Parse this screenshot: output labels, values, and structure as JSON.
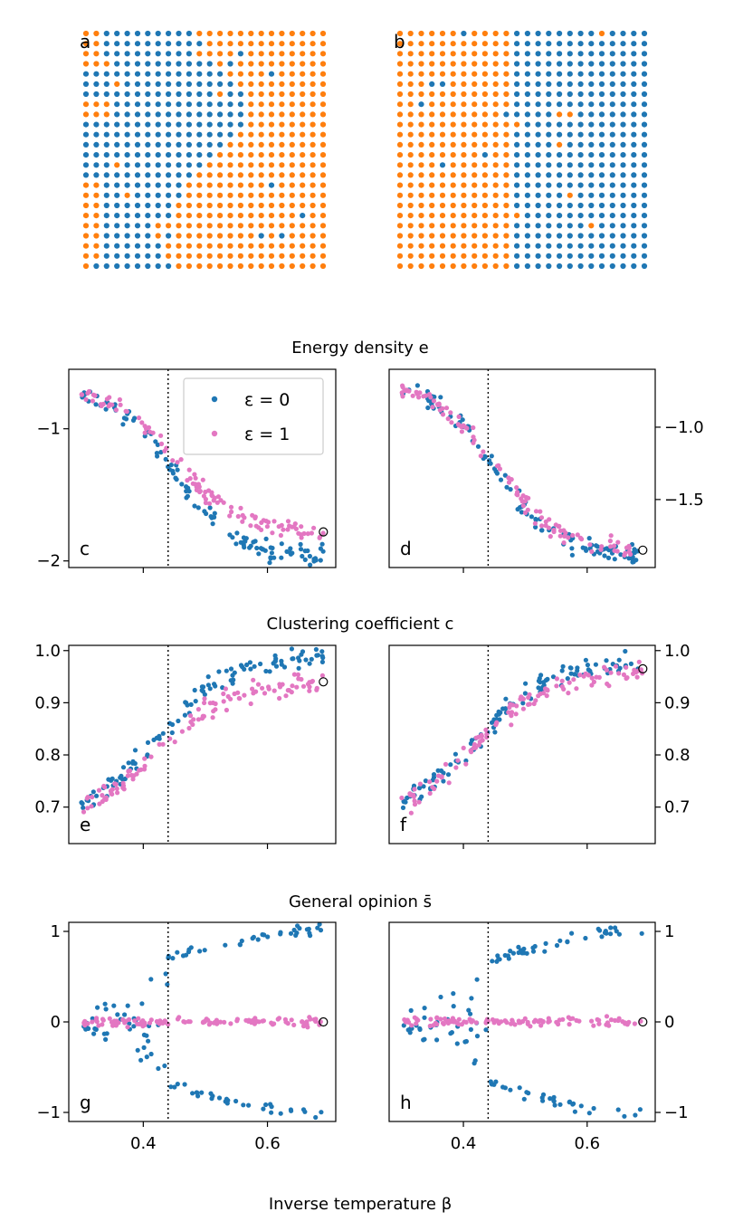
{
  "figure": {
    "xlabel": "Inverse temperature β",
    "sections": [
      {
        "title": "Energy density e"
      },
      {
        "title": "Clustering coefficient c"
      },
      {
        "title": "General opinion s̄"
      }
    ],
    "legend": [
      {
        "label": "ε = 0",
        "color": "#1f77b4"
      },
      {
        "label": "ε = 1",
        "color": "#e377c2"
      }
    ],
    "critical_beta": 0.44,
    "x_ticks": [
      "0.4",
      "0.6"
    ],
    "lattice_colors": {
      "up": "#ff7f0e",
      "down": "#1f77b4"
    }
  },
  "lattices": [
    {
      "letter": "a",
      "size": 24,
      "description_sides": [
        "down-left",
        "up-right"
      ]
    },
    {
      "letter": "b",
      "size": 24,
      "description_sides": [
        "up-left",
        "down-right"
      ]
    }
  ],
  "chart_data": [
    {
      "type": "scatter",
      "panel": "c",
      "series_names": [
        "ε = 0",
        "ε = 1"
      ],
      "xlim": [
        0.28,
        0.71
      ],
      "ylim": [
        -2.05,
        -0.55
      ],
      "yticks": [
        "−2",
        "−1"
      ],
      "ytick_values": [
        -2,
        -1
      ],
      "yaxis": "left",
      "show_xticklabels": false,
      "quantity": "energy",
      "eps_zero_low": -1.97,
      "eps_one_low": -1.78
    },
    {
      "type": "scatter",
      "panel": "d",
      "series_names": [
        "ε = 0",
        "ε = 1"
      ],
      "xlim": [
        0.28,
        0.71
      ],
      "ylim": [
        -1.97,
        -0.6
      ],
      "yticks": [
        "−1.5",
        "−1.0"
      ],
      "ytick_values": [
        -1.5,
        -1.0
      ],
      "yaxis": "right",
      "show_xticklabels": false,
      "quantity": "energy",
      "eps_zero_low": -1.9,
      "eps_one_low": -1.85
    },
    {
      "type": "scatter",
      "panel": "e",
      "series_names": [
        "ε = 0",
        "ε = 1"
      ],
      "xlim": [
        0.28,
        0.71
      ],
      "ylim": [
        0.63,
        1.01
      ],
      "yticks": [
        "0.7",
        "0.8",
        "0.9",
        "1.0"
      ],
      "ytick_values": [
        0.7,
        0.8,
        0.9,
        1.0
      ],
      "yaxis": "left",
      "show_xticklabels": false,
      "quantity": "clustering",
      "eps_zero_high": 0.99,
      "eps_one_high": 0.94
    },
    {
      "type": "scatter",
      "panel": "f",
      "series_names": [
        "ε = 0",
        "ε = 1"
      ],
      "xlim": [
        0.28,
        0.71
      ],
      "ylim": [
        0.63,
        1.01
      ],
      "yticks": [
        "0.7",
        "0.8",
        "0.9",
        "1.0"
      ],
      "ytick_values": [
        0.7,
        0.8,
        0.9,
        1.0
      ],
      "yaxis": "right",
      "show_xticklabels": false,
      "quantity": "clustering",
      "eps_zero_high": 0.98,
      "eps_one_high": 0.965
    },
    {
      "type": "scatter",
      "panel": "g",
      "series_names": [
        "ε = 0",
        "ε = 1"
      ],
      "xlim": [
        0.28,
        0.71
      ],
      "ylim": [
        -1.1,
        1.1
      ],
      "yticks": [
        "−1",
        "0",
        "1"
      ],
      "ytick_values": [
        -1,
        0,
        1
      ],
      "yaxis": "left",
      "show_xticklabels": true,
      "quantity": "opinion"
    },
    {
      "type": "scatter",
      "panel": "h",
      "series_names": [
        "ε = 0",
        "ε = 1"
      ],
      "xlim": [
        0.28,
        0.71
      ],
      "ylim": [
        -1.1,
        1.1
      ],
      "yticks": [
        "−1",
        "0",
        "1"
      ],
      "ytick_values": [
        -1,
        0,
        1
      ],
      "yaxis": "right",
      "show_xticklabels": true,
      "quantity": "opinion"
    }
  ]
}
